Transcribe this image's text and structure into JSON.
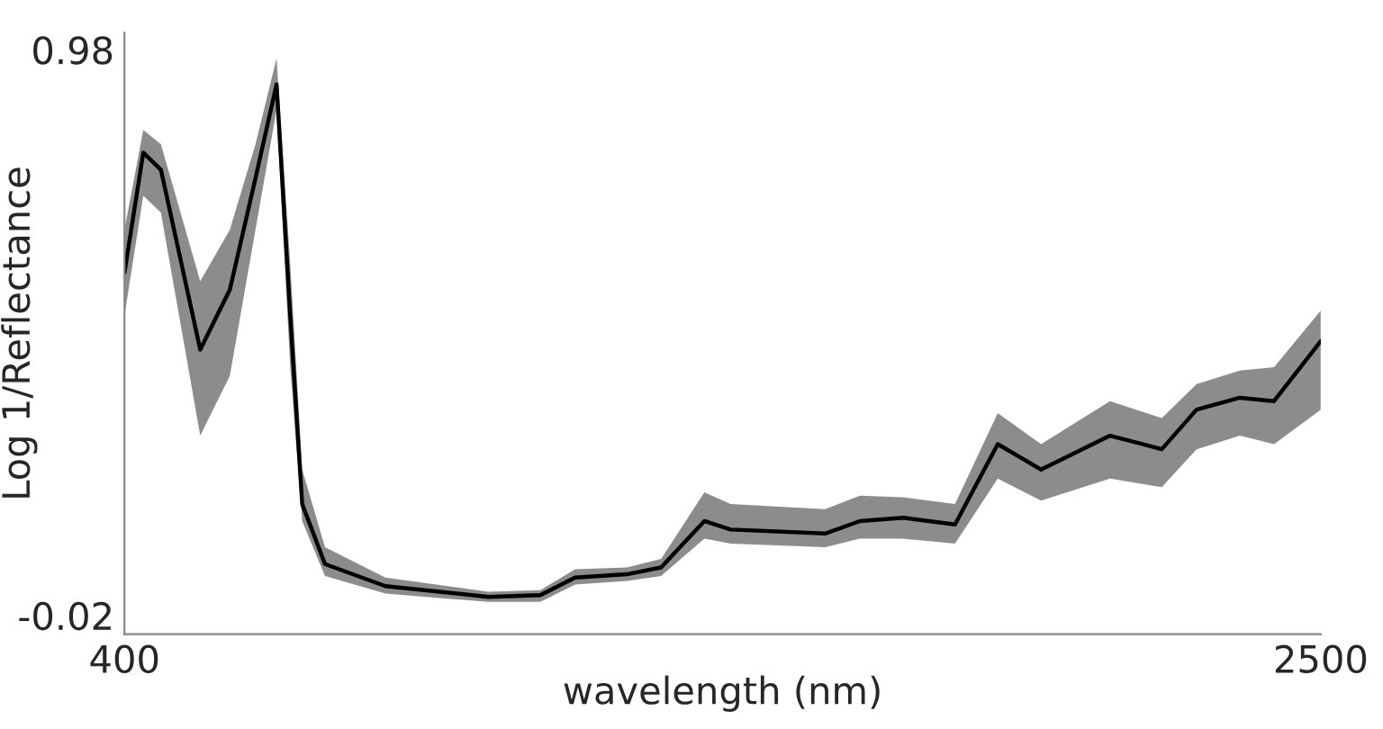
{
  "chart_data": {
    "type": "line",
    "xlabel": "wavelength (nm)",
    "ylabel": "Log 1/Reflectance",
    "xlim": [
      400,
      2500
    ],
    "ylim": [
      -0.053,
      1.01
    ],
    "xticks": [
      400,
      2500
    ],
    "yticks": [
      -0.02,
      0.98
    ],
    "grid": false,
    "legend": false,
    "marker": "none",
    "line_style": "solid",
    "series": [
      {
        "color": "#000000",
        "x": [
          400,
          433,
          464,
          533,
          585,
          630,
          667,
          691,
          712,
          752,
          858,
          1039,
          1130,
          1191,
          1282,
          1342,
          1418,
          1464,
          1630,
          1691,
          1767,
          1858,
          1933,
          2009,
          2130,
          2221,
          2282,
          2358,
          2418,
          2500
        ],
        "values": [
          0.586,
          0.798,
          0.768,
          0.45,
          0.556,
          0.753,
          0.919,
          0.51,
          0.177,
          0.071,
          0.032,
          0.013,
          0.016,
          0.047,
          0.053,
          0.065,
          0.147,
          0.132,
          0.125,
          0.147,
          0.153,
          0.141,
          0.283,
          0.238,
          0.298,
          0.274,
          0.344,
          0.365,
          0.359,
          0.465
        ],
        "lower": [
          0.51,
          0.722,
          0.692,
          0.298,
          0.404,
          0.662,
          0.874,
          0.419,
          0.147,
          0.05,
          0.019,
          0.004,
          0.004,
          0.035,
          0.041,
          0.05,
          0.116,
          0.107,
          0.101,
          0.116,
          0.116,
          0.107,
          0.222,
          0.183,
          0.222,
          0.207,
          0.274,
          0.298,
          0.283,
          0.344
        ],
        "upper": [
          0.662,
          0.838,
          0.813,
          0.571,
          0.662,
          0.813,
          0.965,
          0.601,
          0.238,
          0.101,
          0.047,
          0.022,
          0.025,
          0.062,
          0.065,
          0.08,
          0.198,
          0.177,
          0.168,
          0.192,
          0.189,
          0.177,
          0.338,
          0.283,
          0.359,
          0.329,
          0.389,
          0.413,
          0.419,
          0.519
        ]
      }
    ]
  }
}
